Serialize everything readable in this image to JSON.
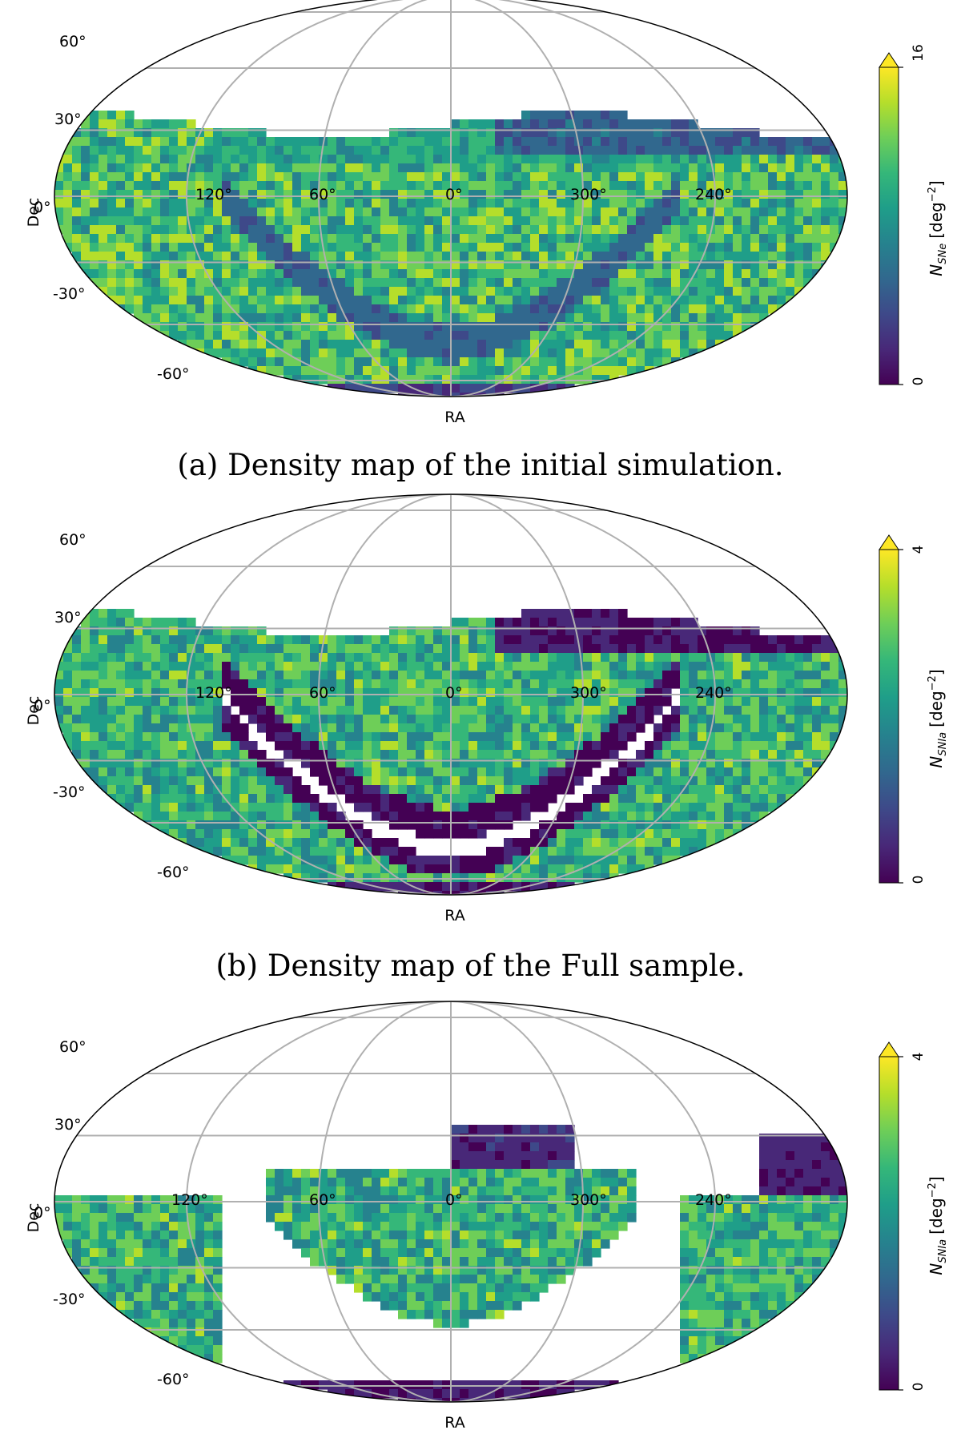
{
  "chart_data": [
    {
      "type": "heatmap",
      "projection": "mollweide",
      "ra_labels": [
        "120°",
        "60°",
        "0°",
        "300°",
        "240°"
      ],
      "dec_labels": [
        "60°",
        "30°",
        "0°",
        "-30°",
        "-60°"
      ],
      "xlabel": "RA",
      "ylabel": "Dec",
      "grid": true,
      "colormap": "viridis",
      "colorbar": {
        "label": "N_{SNe} [deg^{-2}]",
        "label_main": "N",
        "label_sub": "SNe",
        "label_unit": "[deg",
        "label_exp": "−2",
        "label_close": "]",
        "min": 0,
        "max": 16,
        "extend": "max",
        "tick_labels": [
          "0",
          "16"
        ]
      },
      "coverage": "dense survey strip with a darker low-density band along the Galactic plane",
      "caption": "(a) Density map of the initial simulation."
    },
    {
      "type": "heatmap",
      "projection": "mollweide",
      "ra_labels": [
        "120°",
        "60°",
        "0°",
        "300°",
        "240°"
      ],
      "dec_labels": [
        "60°",
        "30°",
        "0°",
        "-30°",
        "-60°"
      ],
      "xlabel": "RA",
      "ylabel": "Dec",
      "grid": true,
      "colormap": "viridis",
      "colorbar": {
        "label": "N_{SNIa} [deg^{-2}]",
        "label_main": "N",
        "label_sub": "SNIa",
        "label_unit": "[deg",
        "label_exp": "−2",
        "label_close": "]",
        "min": 0,
        "max": 4,
        "extend": "max",
        "tick_labels": [
          "0",
          "4"
        ]
      },
      "coverage": "survey strip with empty (white) gaps along the Galactic plane",
      "caption": "(b) Density map of the Full sample."
    },
    {
      "type": "heatmap",
      "projection": "mollweide",
      "ra_labels": [
        "120°",
        "60°",
        "0°",
        "300°",
        "240°"
      ],
      "dec_labels": [
        "60°",
        "30°",
        "0°",
        "-30°",
        "-60°"
      ],
      "xlabel": "RA",
      "ylabel": "Dec",
      "grid": true,
      "colormap": "viridis",
      "colorbar": {
        "label": "N_{SNIa} [deg^{-2}]",
        "label_main": "N",
        "label_sub": "SNIa",
        "label_unit": "[deg",
        "label_exp": "−2",
        "label_close": "]",
        "min": 0,
        "max": 4,
        "extend": "max",
        "tick_labels": [
          "0",
          "4"
        ]
      },
      "coverage": "Galactic plane region removed; central bowl and two side wedges remain"
    }
  ],
  "colors": {
    "viridis": [
      "#440154",
      "#482878",
      "#3e4989",
      "#31688e",
      "#26828e",
      "#1f9e89",
      "#35b779",
      "#6ece58",
      "#b5de2b",
      "#fde725"
    ],
    "grid": "#b0b0b0",
    "outline": "#000000",
    "text": "#000000"
  }
}
